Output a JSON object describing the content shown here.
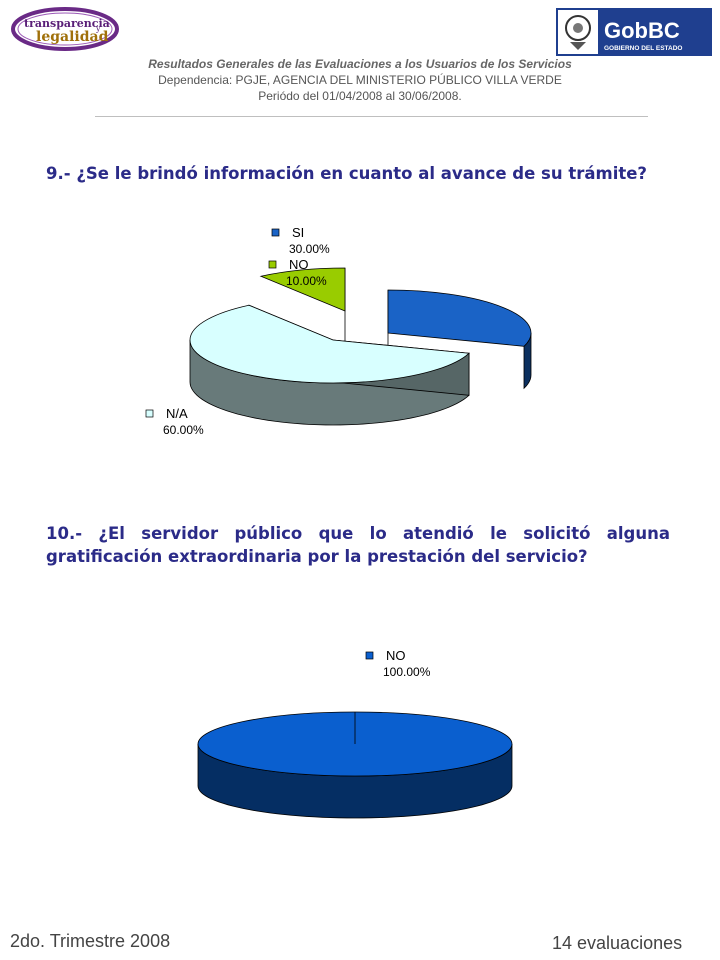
{
  "logos": {
    "left_line1": "transparencia",
    "left_line2": "legalidad",
    "left_small": "y",
    "right_text": "GobBC",
    "right_subtext": "GOBIERNO DEL ESTADO"
  },
  "header": {
    "line1": "Resultados Generales de las Evaluaciones a los Usuarios de los Servicios",
    "line2": "Dependencia: PGJE, AGENCIA DEL MINISTERIO  PÚBLICO VILLA VERDE",
    "line3": "Periódo del 01/04/2008 al 30/06/2008."
  },
  "questions": {
    "q9": "9.- ¿Se le brindó información en cuanto al avance de su trámite?",
    "q10": "10.- ¿El servidor público que lo atendió le solicitó alguna gratificación extraordinaria por la prestación del servicio?"
  },
  "chart_data": [
    {
      "type": "pie",
      "categories": [
        "SI",
        "N/A",
        "NO"
      ],
      "values": [
        30.0,
        60.0,
        10.0
      ],
      "value_labels": [
        "30.00%",
        "60.00%",
        "10.00%"
      ],
      "colors": [
        "#1a63c6",
        "#d8ffff",
        "#99cc00"
      ]
    },
    {
      "type": "pie",
      "categories": [
        "NO"
      ],
      "values": [
        100.0
      ],
      "value_labels": [
        "100.00%"
      ],
      "colors": [
        "#0a5fcf"
      ]
    }
  ],
  "footer": {
    "left": "2do. Trimestre 2008",
    "right": "14 evaluaciones"
  }
}
